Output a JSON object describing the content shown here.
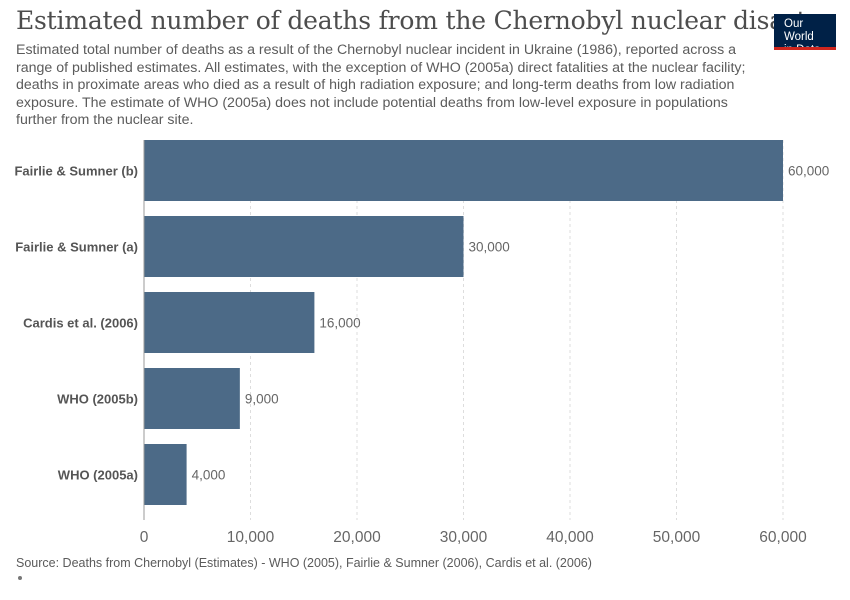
{
  "header": {
    "title": "Estimated number of deaths from the Chernobyl nuclear disaster",
    "subtitle": "Estimated total number of deaths as a result of the Chernobyl nuclear incident in Ukraine (1986), reported across a range of published estimates. All estimates, with the exception of WHO (2005a) direct fatalities at the nuclear facility; deaths in proximate areas who died as a result of high radiation exposure; and long-term deaths from low radiation exposure. The estimate of WHO (2005a) does not include potential deaths from low-level exposure in populations further from the nuclear site."
  },
  "logo": {
    "line1": "Our World",
    "line2": "in Data",
    "bg_color": "#002147",
    "accent_color": "#ce261e"
  },
  "footer": {
    "source": "Source: Deaths from Chernobyl (Estimates) - WHO (2005), Fairlie & Sumner (2006), Cardis et al. (2006)"
  },
  "chart_data": {
    "type": "bar",
    "orientation": "horizontal",
    "categories": [
      "Fairlie & Sumner (b)",
      "Fairlie & Sumner (a)",
      "Cardis et al. (2006)",
      "WHO (2005b)",
      "WHO (2005a)"
    ],
    "values": [
      60000,
      30000,
      16000,
      9000,
      4000
    ],
    "value_labels": [
      "60,000",
      "30,000",
      "16,000",
      "9,000",
      "4,000"
    ],
    "xlim": [
      0,
      60000
    ],
    "xticks": [
      0,
      10000,
      20000,
      30000,
      40000,
      50000,
      60000
    ],
    "xtick_labels": [
      "0",
      "10,000",
      "20,000",
      "30,000",
      "40,000",
      "50,000",
      "60,000"
    ],
    "grid": "vertical dashed",
    "bar_color": "#4c6a87",
    "title": "Estimated number of deaths from the Chernobyl nuclear disaster",
    "xlabel": "",
    "ylabel": ""
  }
}
